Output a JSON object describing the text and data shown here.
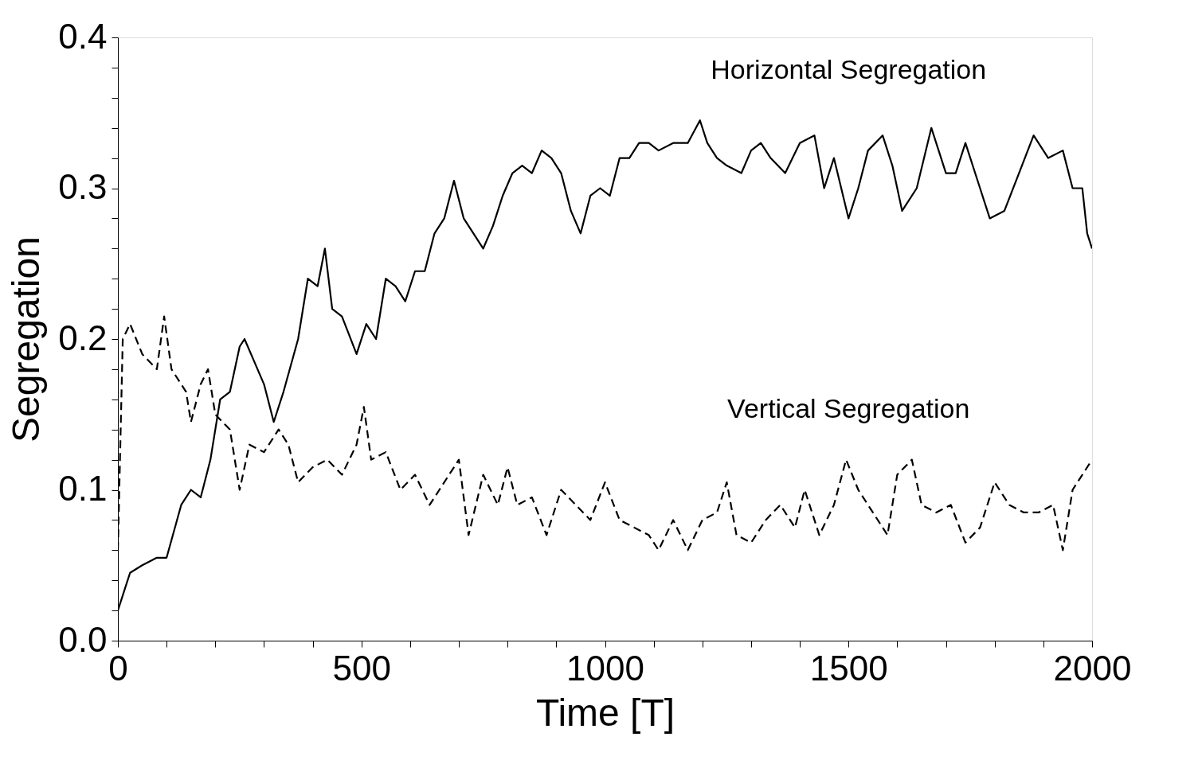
{
  "chart_data": {
    "type": "line",
    "xlabel": "Time [T]",
    "ylabel": "Segregation",
    "xlim": [
      0,
      2000
    ],
    "ylim": [
      0,
      0.4
    ],
    "xticks": [
      0,
      {
        "value": 100,
        "label": null
      },
      {
        "value": 200,
        "label": null
      },
      {
        "value": 300,
        "label": null
      },
      {
        "value": 400,
        "label": null
      },
      500,
      {
        "value": 600,
        "label": null
      },
      {
        "value": 700,
        "label": null
      },
      {
        "value": 800,
        "label": null
      },
      {
        "value": 900,
        "label": null
      },
      1000,
      {
        "value": 1100,
        "label": null
      },
      {
        "value": 1200,
        "label": null
      },
      {
        "value": 1300,
        "label": null
      },
      {
        "value": 1400,
        "label": null
      },
      1500,
      {
        "value": 1600,
        "label": null
      },
      {
        "value": 1700,
        "label": null
      },
      {
        "value": 1800,
        "label": null
      },
      {
        "value": 1900,
        "label": null
      },
      2000
    ],
    "yticks": [
      {
        "value": 0,
        "label": "0.0"
      },
      {
        "value": 0.02,
        "label": null
      },
      {
        "value": 0.04,
        "label": null
      },
      {
        "value": 0.06,
        "label": null
      },
      {
        "value": 0.08,
        "label": null
      },
      0.1,
      {
        "value": 0.12,
        "label": null
      },
      {
        "value": 0.14,
        "label": null
      },
      {
        "value": 0.16,
        "label": null
      },
      {
        "value": 0.18,
        "label": null
      },
      0.2,
      {
        "value": 0.22,
        "label": null
      },
      {
        "value": 0.24,
        "label": null
      },
      {
        "value": 0.26,
        "label": null
      },
      {
        "value": 0.28,
        "label": null
      },
      0.3,
      {
        "value": 0.32,
        "label": null
      },
      {
        "value": 0.34,
        "label": null
      },
      {
        "value": 0.36,
        "label": null
      },
      {
        "value": 0.38,
        "label": null
      },
      0.4
    ],
    "marker": "none",
    "series": [
      {
        "name": "Horizontal Segregation",
        "color": "#000000",
        "line_style": "solid",
        "x": [
          0,
          15,
          25,
          50,
          80,
          100,
          130,
          150,
          170,
          190,
          210,
          230,
          250,
          260,
          280,
          300,
          320,
          340,
          370,
          390,
          410,
          425,
          440,
          460,
          490,
          510,
          530,
          550,
          570,
          590,
          610,
          630,
          650,
          670,
          690,
          710,
          730,
          750,
          770,
          790,
          810,
          830,
          850,
          870,
          890,
          910,
          930,
          950,
          970,
          990,
          1010,
          1030,
          1050,
          1070,
          1090,
          1110,
          1140,
          1170,
          1195,
          1210,
          1230,
          1250,
          1280,
          1300,
          1320,
          1340,
          1370,
          1400,
          1430,
          1450,
          1470,
          1500,
          1520,
          1540,
          1570,
          1590,
          1610,
          1640,
          1670,
          1700,
          1720,
          1740,
          1770,
          1790,
          1820,
          1850,
          1880,
          1910,
          1940,
          1960,
          1980,
          1990,
          2000
        ],
        "values": [
          0.02,
          0.035,
          0.045,
          0.05,
          0.055,
          0.055,
          0.09,
          0.1,
          0.095,
          0.12,
          0.16,
          0.165,
          0.195,
          0.2,
          0.185,
          0.17,
          0.145,
          0.165,
          0.2,
          0.24,
          0.235,
          0.26,
          0.22,
          0.215,
          0.19,
          0.21,
          0.2,
          0.24,
          0.235,
          0.225,
          0.245,
          0.245,
          0.27,
          0.28,
          0.305,
          0.28,
          0.27,
          0.26,
          0.275,
          0.295,
          0.31,
          0.315,
          0.31,
          0.325,
          0.32,
          0.31,
          0.285,
          0.27,
          0.295,
          0.3,
          0.295,
          0.32,
          0.32,
          0.33,
          0.33,
          0.325,
          0.33,
          0.33,
          0.345,
          0.33,
          0.32,
          0.315,
          0.31,
          0.325,
          0.33,
          0.32,
          0.31,
          0.33,
          0.335,
          0.3,
          0.32,
          0.28,
          0.3,
          0.325,
          0.335,
          0.315,
          0.285,
          0.3,
          0.34,
          0.31,
          0.31,
          0.33,
          0.3,
          0.28,
          0.285,
          0.31,
          0.335,
          0.32,
          0.325,
          0.3,
          0.3,
          0.27,
          0.26
        ]
      },
      {
        "name": "Vertical Segregation",
        "color": "#000000",
        "line_style": "dashed",
        "x": [
          0,
          10,
          25,
          50,
          80,
          95,
          110,
          140,
          150,
          170,
          185,
          200,
          230,
          250,
          270,
          300,
          330,
          350,
          370,
          400,
          430,
          460,
          490,
          505,
          520,
          550,
          580,
          610,
          640,
          660,
          700,
          720,
          750,
          780,
          800,
          820,
          850,
          880,
          910,
          940,
          970,
          1000,
          1030,
          1060,
          1090,
          1110,
          1140,
          1170,
          1200,
          1230,
          1250,
          1270,
          1300,
          1330,
          1360,
          1390,
          1410,
          1440,
          1470,
          1495,
          1520,
          1550,
          1580,
          1600,
          1630,
          1650,
          1680,
          1710,
          1740,
          1770,
          1800,
          1830,
          1860,
          1890,
          1920,
          1940,
          1960,
          1980,
          2000
        ],
        "values": [
          0.06,
          0.2,
          0.21,
          0.19,
          0.18,
          0.215,
          0.18,
          0.165,
          0.145,
          0.17,
          0.18,
          0.15,
          0.14,
          0.1,
          0.13,
          0.125,
          0.14,
          0.13,
          0.105,
          0.115,
          0.12,
          0.11,
          0.13,
          0.155,
          0.12,
          0.125,
          0.1,
          0.11,
          0.09,
          0.1,
          0.12,
          0.07,
          0.11,
          0.09,
          0.115,
          0.09,
          0.095,
          0.07,
          0.1,
          0.09,
          0.08,
          0.105,
          0.08,
          0.075,
          0.07,
          0.06,
          0.08,
          0.06,
          0.08,
          0.085,
          0.105,
          0.07,
          0.065,
          0.08,
          0.09,
          0.075,
          0.1,
          0.07,
          0.09,
          0.12,
          0.1,
          0.085,
          0.07,
          0.11,
          0.12,
          0.09,
          0.085,
          0.09,
          0.065,
          0.075,
          0.105,
          0.09,
          0.085,
          0.085,
          0.09,
          0.06,
          0.1,
          0.11,
          0.12
        ]
      }
    ]
  }
}
